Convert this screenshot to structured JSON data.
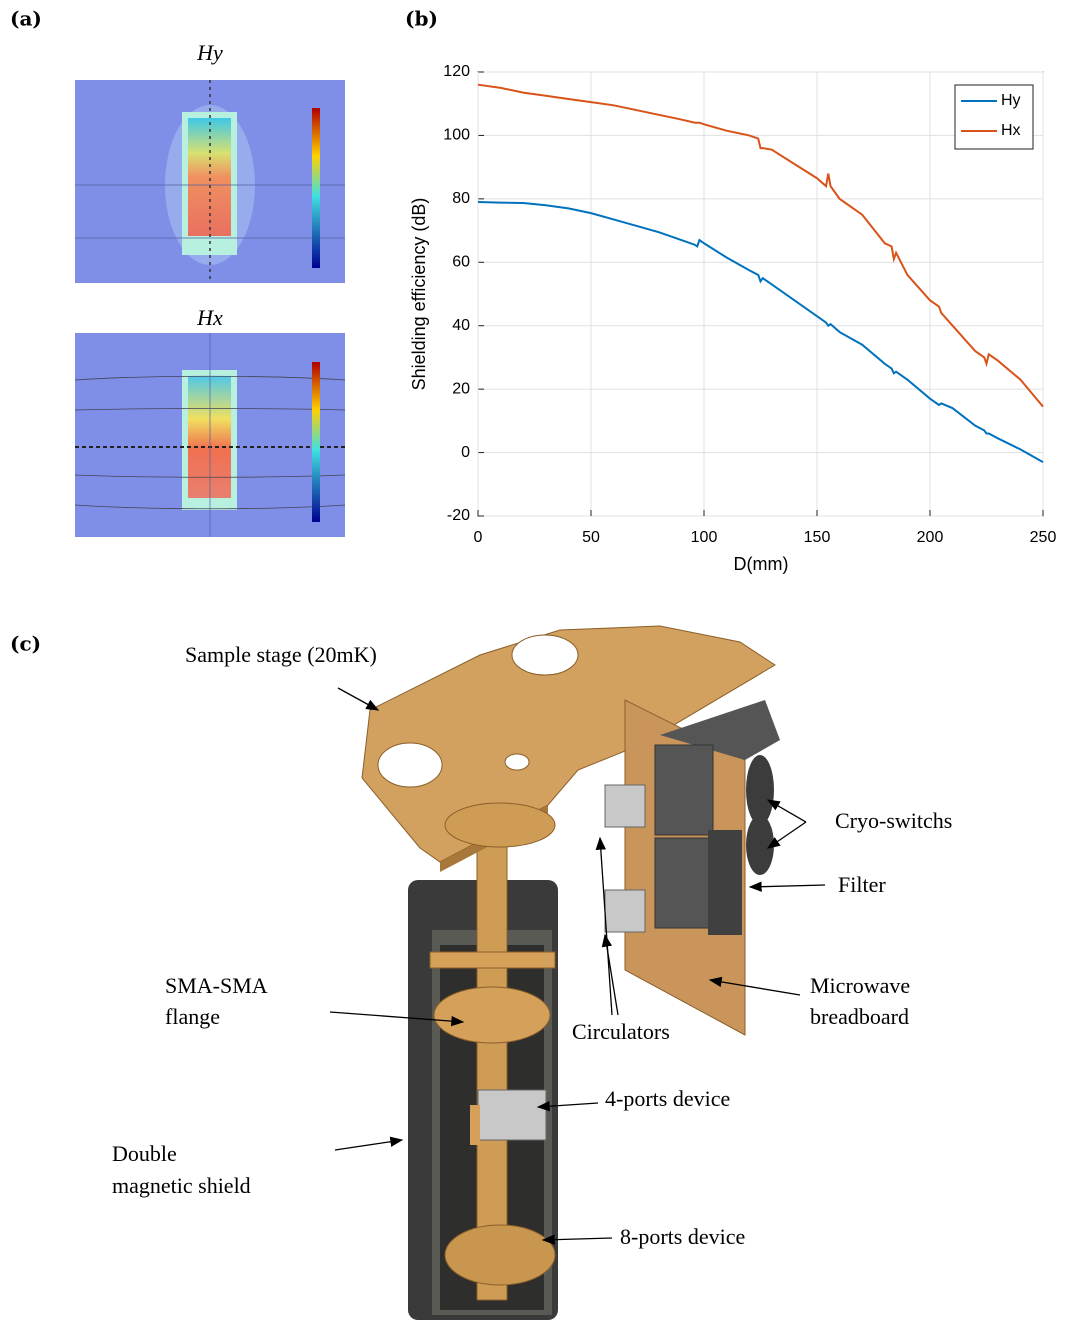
{
  "panel_labels": [
    "(a)",
    "(b)",
    "(c)"
  ],
  "simulations": [
    {
      "title": "Hy"
    },
    {
      "title": "Hx"
    }
  ],
  "chart_data": {
    "type": "line",
    "xlabel": "D(mm)",
    "ylabel": "Shielding efficiency (dB)",
    "x": [
      0,
      10,
      20,
      30,
      40,
      50,
      60,
      70,
      80,
      90,
      96,
      97,
      98,
      100,
      110,
      120,
      124,
      125,
      126,
      130,
      140,
      150,
      154,
      155,
      156,
      160,
      170,
      180,
      183,
      184,
      185,
      190,
      200,
      204,
      205,
      210,
      220,
      224,
      225,
      226,
      230,
      240,
      250
    ],
    "series": [
      {
        "name": "Hy",
        "color": "#0072bd",
        "values": [
          79,
          78.8,
          78.7,
          78,
          77,
          75.5,
          73.5,
          71.5,
          69.5,
          67,
          65.5,
          65,
          67,
          66,
          61.5,
          57.5,
          56,
          54,
          55,
          53,
          48,
          43,
          41,
          40,
          40.5,
          38,
          34,
          28,
          26.5,
          25,
          25.5,
          23,
          17,
          15,
          15.5,
          14,
          8.5,
          7,
          6,
          6,
          4.5,
          1,
          -3
        ]
      },
      {
        "name": "Hx",
        "color": "#d95319",
        "values": [
          116,
          115,
          113.5,
          112.5,
          111.5,
          110.5,
          109.5,
          108,
          106.5,
          105,
          104,
          104,
          104,
          103.5,
          101.5,
          100,
          99,
          96,
          96,
          95.5,
          91,
          86.5,
          84,
          88,
          84,
          80,
          75,
          66,
          65,
          61,
          63,
          56,
          48,
          46,
          44,
          40,
          32,
          30,
          28,
          31,
          29,
          23,
          14.5
        ]
      }
    ],
    "xlim": [
      0,
      250
    ],
    "xticks": [
      0,
      50,
      100,
      150,
      200,
      250
    ],
    "ylim": [
      -20,
      120
    ],
    "yticks": [
      -20,
      0,
      20,
      40,
      60,
      80,
      100,
      120
    ],
    "grid": true,
    "legend": "upper-right"
  },
  "diagram": {
    "labels": [
      {
        "lines": [
          "Sample stage (20mK)"
        ]
      },
      {
        "lines": [
          "Cryo-switchs"
        ]
      },
      {
        "lines": [
          "Filter"
        ]
      },
      {
        "lines": [
          "Microwave",
          "breadboard"
        ]
      },
      {
        "lines": [
          "SMA-SMA",
          "flange"
        ]
      },
      {
        "lines": [
          "Circulators"
        ]
      },
      {
        "lines": [
          "4-ports device"
        ]
      },
      {
        "lines": [
          "Double",
          "magnetic shield"
        ]
      },
      {
        "lines": [
          "8-ports device"
        ]
      }
    ]
  }
}
